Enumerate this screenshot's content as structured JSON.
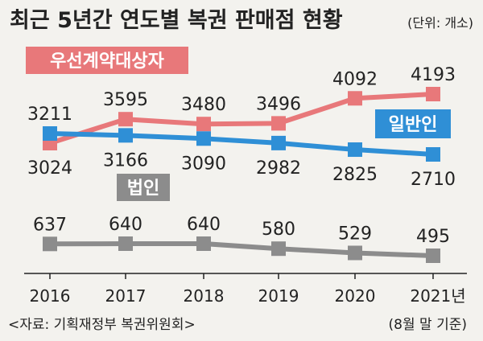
{
  "title": "최근 5년간 연도별 복권 판매점 현황",
  "unit": "(단위: 개소)",
  "source": "<자료: 기획재정부 복권위원회>",
  "chart_data": {
    "type": "line",
    "title": "최근 5년간 연도별 복권 판매점 현황",
    "unit": "(단위: 개소)",
    "categories": [
      "2016",
      "2017",
      "2018",
      "2019",
      "2020",
      "2021년"
    ],
    "footnote": "(8월 말 기준)",
    "series": [
      {
        "name": "우선계약대상자",
        "color": "#e8787a",
        "values": [
          3024,
          3595,
          3480,
          3496,
          4092,
          4193
        ]
      },
      {
        "name": "일반인",
        "color": "#2f8fd6",
        "values": [
          3211,
          3166,
          3090,
          2982,
          2825,
          2710
        ]
      },
      {
        "name": "법인",
        "color": "#8c8c8c",
        "values": [
          637,
          640,
          640,
          580,
          529,
          495
        ]
      }
    ],
    "grid": false,
    "legend": "inline labels"
  }
}
